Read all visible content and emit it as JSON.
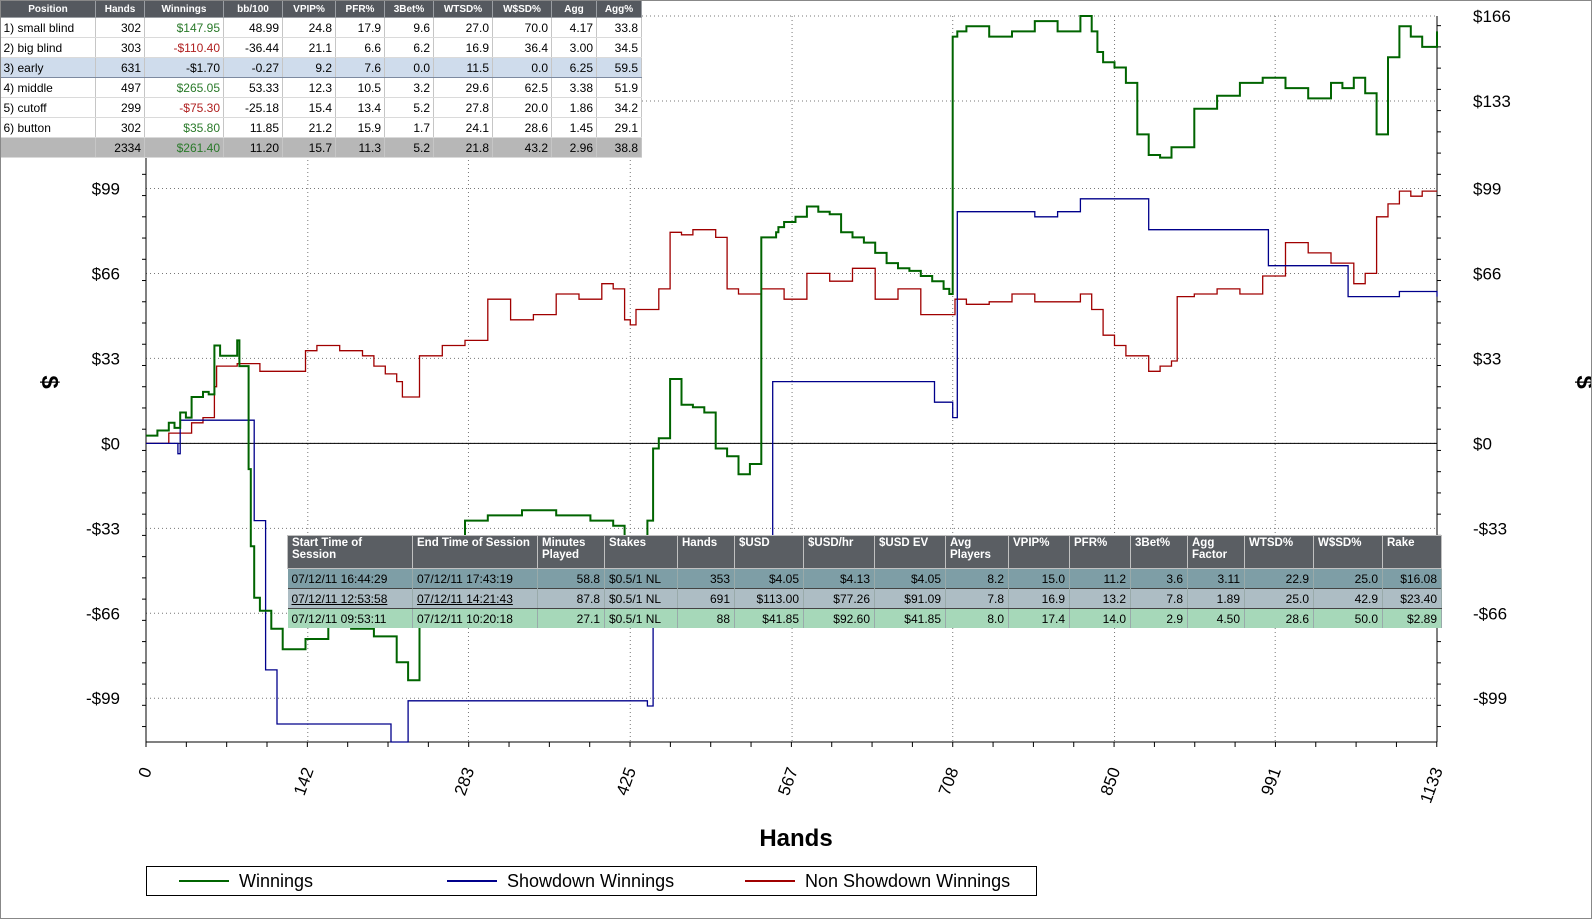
{
  "position_table": {
    "headers": [
      "Position",
      "Hands",
      "Winnings",
      "bb/100",
      "VPIP%",
      "PFR%",
      "3Bet%",
      "WTSD%",
      "W$SD%",
      "Agg",
      "Agg%"
    ],
    "rows": [
      [
        "1) small blind",
        "302",
        "$147.95",
        "48.99",
        "24.8",
        "17.9",
        "9.6",
        "27.0",
        "70.0",
        "4.17",
        "33.8"
      ],
      [
        "2) big blind",
        "303",
        "-$110.40",
        "-36.44",
        "21.1",
        "6.6",
        "6.2",
        "16.9",
        "36.4",
        "3.00",
        "34.5"
      ],
      [
        "3) early",
        "631",
        "-$1.70",
        "-0.27",
        "9.2",
        "7.6",
        "0.0",
        "11.5",
        "0.0",
        "6.25",
        "59.5"
      ],
      [
        "4) middle",
        "497",
        "$265.05",
        "53.33",
        "12.3",
        "10.5",
        "3.2",
        "29.6",
        "62.5",
        "3.38",
        "51.9"
      ],
      [
        "5) cutoff",
        "299",
        "-$75.30",
        "-25.18",
        "15.4",
        "13.4",
        "5.2",
        "27.8",
        "20.0",
        "1.86",
        "34.2"
      ],
      [
        "6) button",
        "302",
        "$35.80",
        "11.85",
        "21.2",
        "15.9",
        "1.7",
        "24.1",
        "28.6",
        "1.45",
        "29.1"
      ]
    ],
    "total": [
      "",
      "2334",
      "$261.40",
      "11.20",
      "15.7",
      "11.3",
      "5.2",
      "21.8",
      "43.2",
      "2.96",
      "38.8"
    ],
    "selected_row": 2
  },
  "session_table": {
    "headers": [
      "Start Time of Session",
      "End Time of Session",
      "Minutes Played",
      "Stakes",
      "Hands",
      "$USD",
      "$USD/hr",
      "$USD EV",
      "Avg Players",
      "VPIP%",
      "PFR%",
      "3Bet%",
      "Agg Factor",
      "WTSD%",
      "W$SD%",
      "Rake"
    ],
    "rows": [
      [
        "07/12/11 16:44:29",
        "07/12/11 17:43:19",
        "58.8",
        "$0.5/1 NL",
        "353",
        "$4.05",
        "$4.13",
        "$4.05",
        "8.2",
        "15.0",
        "11.2",
        "3.6",
        "3.11",
        "22.9",
        "25.0",
        "$16.08"
      ],
      [
        "07/12/11 12:53:58",
        "07/12/11 14:21:43",
        "87.8",
        "$0.5/1 NL",
        "691",
        "$113.00",
        "$77.26",
        "$91.09",
        "7.8",
        "16.9",
        "13.2",
        "7.8",
        "1.89",
        "25.0",
        "42.9",
        "$23.40"
      ],
      [
        "07/12/11 09:53:11",
        "07/12/11 10:20:18",
        "27.1",
        "$0.5/1 NL",
        "88",
        "$41.85",
        "$92.60",
        "$41.85",
        "8.0",
        "17.4",
        "14.0",
        "2.9",
        "4.50",
        "28.6",
        "50.0",
        "$2.89"
      ]
    ]
  },
  "chart_data": {
    "type": "line",
    "xlabel": "Hands",
    "ylabel": "$",
    "xlim": [
      0,
      1133
    ],
    "ylim": [
      -116,
      166
    ],
    "x_ticks": [
      0,
      142,
      283,
      425,
      567,
      708,
      850,
      991,
      1133
    ],
    "y_ticks": [
      -99,
      -66,
      -33,
      0,
      33,
      66,
      99,
      133,
      166
    ],
    "y_tick_labels": [
      "-$99",
      "-$66",
      "-$33",
      "$0",
      "$33",
      "$66",
      "$99",
      "$133",
      "$166"
    ],
    "grid": true,
    "legend_position": "bottom",
    "series": [
      {
        "name": "Winnings",
        "color": "#006400",
        "x": [
          0,
          10,
          20,
          25,
          30,
          35,
          40,
          50,
          55,
          60,
          62,
          65,
          80,
          82,
          90,
          92,
          95,
          100,
          110,
          120,
          140,
          160,
          180,
          200,
          220,
          230,
          240,
          245,
          250,
          260,
          280,
          300,
          330,
          360,
          390,
          410,
          420,
          425,
          430,
          440,
          445,
          450,
          460,
          470,
          480,
          490,
          500,
          510,
          520,
          530,
          540,
          550,
          553,
          555,
          560,
          570,
          580,
          590,
          600,
          610,
          620,
          630,
          640,
          650,
          660,
          670,
          680,
          690,
          700,
          705,
          708,
          712,
          720,
          740,
          760,
          780,
          800,
          820,
          830,
          835,
          840,
          850,
          860,
          870,
          880,
          890,
          900,
          920,
          940,
          960,
          980,
          1000,
          1020,
          1040,
          1050,
          1060,
          1070,
          1080,
          1090,
          1100,
          1110,
          1120,
          1133
        ],
        "y": [
          3,
          5,
          8,
          6,
          12,
          10,
          18,
          20,
          19,
          38,
          38,
          34,
          40,
          30,
          -10,
          -40,
          -60,
          -65,
          -72,
          -80,
          -76,
          -70,
          -72,
          -75,
          -85,
          -92,
          -70,
          -60,
          -50,
          -40,
          -30,
          -28,
          -26,
          -28,
          -30,
          -32,
          -38,
          -45,
          -50,
          -30,
          -2,
          2,
          25,
          15,
          14,
          12,
          -2,
          -5,
          -12,
          -8,
          80,
          80,
          82,
          84,
          86,
          88,
          92,
          90,
          89,
          82,
          80,
          78,
          74,
          70,
          68,
          67,
          65,
          63,
          60,
          58,
          158,
          160,
          162,
          158,
          160,
          164,
          160,
          166,
          160,
          152,
          148,
          146,
          140,
          120,
          112,
          111,
          115,
          130,
          135,
          140,
          142,
          138,
          134,
          140,
          138,
          142,
          136,
          120,
          150,
          162,
          158,
          154,
          160
        ]
      },
      {
        "name": "Showdown Winnings",
        "color": "#00008b",
        "x": [
          0,
          25,
          28,
          30,
          90,
          95,
          105,
          115,
          210,
          215,
          230,
          250,
          440,
          445,
          548,
          550,
          690,
          692,
          708,
          712,
          730,
          780,
          800,
          820,
          850,
          880,
          980,
          985,
          1050,
          1055,
          1090,
          1100,
          1133
        ],
        "y": [
          0,
          0,
          -4,
          9,
          9,
          -30,
          -88,
          -109,
          -109,
          -116,
          -100,
          -100,
          -102,
          -45,
          -45,
          24,
          24,
          16,
          10,
          90,
          90,
          88,
          90,
          95,
          95,
          83,
          83,
          69,
          69,
          57,
          57,
          59,
          57
        ]
      },
      {
        "name": "Non Showdown Winnings",
        "color": "#a00000",
        "x": [
          0,
          20,
          40,
          50,
          60,
          62,
          80,
          100,
          120,
          140,
          150,
          170,
          190,
          200,
          210,
          220,
          225,
          240,
          260,
          280,
          300,
          320,
          340,
          360,
          380,
          400,
          410,
          420,
          425,
          430,
          440,
          450,
          460,
          470,
          480,
          500,
          510,
          520,
          540,
          560,
          580,
          600,
          620,
          640,
          660,
          680,
          700,
          710,
          720,
          740,
          760,
          780,
          800,
          820,
          830,
          840,
          850,
          860,
          880,
          890,
          900,
          905,
          920,
          940,
          960,
          980,
          1000,
          1020,
          1040,
          1060,
          1070,
          1080,
          1090,
          1100,
          1110,
          1120,
          1133
        ],
        "y": [
          0,
          4,
          8,
          10,
          22,
          30,
          31,
          28,
          28,
          36,
          38,
          36,
          34,
          30,
          27,
          24,
          18,
          34,
          38,
          40,
          56,
          48,
          50,
          58,
          56,
          62,
          60,
          48,
          46,
          52,
          52,
          60,
          82,
          81,
          83,
          80,
          60,
          58,
          60,
          56,
          66,
          63,
          68,
          56,
          60,
          50,
          50,
          56,
          54,
          55,
          58,
          55,
          55,
          58,
          52,
          42,
          38,
          34,
          28,
          30,
          32,
          57,
          58,
          60,
          58,
          65,
          78,
          74,
          70,
          62,
          66,
          88,
          93,
          98,
          96,
          98,
          98
        ]
      }
    ]
  }
}
